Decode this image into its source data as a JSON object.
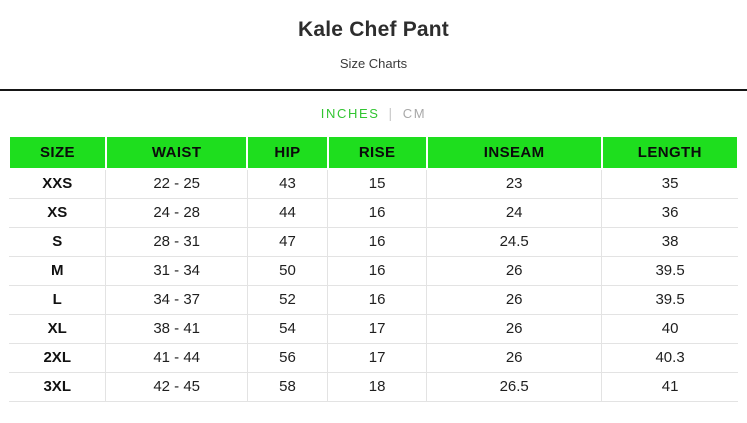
{
  "page": {
    "title": "Kale Chef Pant",
    "subtitle": "Size Charts"
  },
  "unit_toggle": {
    "options": [
      "INCHES",
      "CM"
    ],
    "active": "INCHES",
    "separator": "|"
  },
  "colors": {
    "header_green": "#1ede1e",
    "active_unit_green": "#32c532",
    "inactive_unit_gray": "#a8a8a8",
    "divider_dark": "#161616",
    "grid_gray": "#e3e3e3"
  },
  "table": {
    "headers": [
      "SIZE",
      "WAIST",
      "HIP",
      "RISE",
      "INSEAM",
      "LENGTH"
    ],
    "rows": [
      [
        "XXS",
        "22 - 25",
        "43",
        "15",
        "23",
        "35"
      ],
      [
        "XS",
        "24 - 28",
        "44",
        "16",
        "24",
        "36"
      ],
      [
        "S",
        "28 - 31",
        "47",
        "16",
        "24.5",
        "38"
      ],
      [
        "M",
        "31 - 34",
        "50",
        "16",
        "26",
        "39.5"
      ],
      [
        "L",
        "34 - 37",
        "52",
        "16",
        "26",
        "39.5"
      ],
      [
        "XL",
        "38 - 41",
        "54",
        "17",
        "26",
        "40"
      ],
      [
        "2XL",
        "41 - 44",
        "56",
        "17",
        "26",
        "40.3"
      ],
      [
        "3XL",
        "42 - 45",
        "58",
        "18",
        "26.5",
        "41"
      ]
    ]
  }
}
